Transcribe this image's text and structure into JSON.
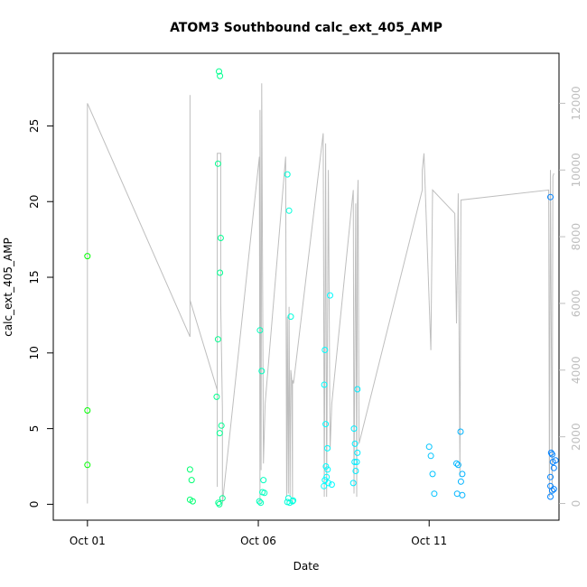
{
  "chart_data": {
    "type": "scatter",
    "title": "ATOM3 Southbound calc_ext_405_AMP",
    "xlabel": "Date",
    "ylabel": "calc_ext_405_AMP",
    "x_unit": "day of October",
    "xlim": [
      0.0,
      14.8
    ],
    "ylim": [
      -1.05,
      29.8
    ],
    "x_ticks": [
      {
        "value": 1,
        "label": "Oct 01"
      },
      {
        "value": 6,
        "label": "Oct 06"
      },
      {
        "value": 11,
        "label": "Oct 11"
      }
    ],
    "y_ticks": [
      0,
      5,
      10,
      15,
      20,
      25
    ],
    "y2_ticks": [
      0,
      2000,
      4000,
      6000,
      8000,
      10000,
      12000
    ],
    "y2lim": [
      -500,
      13500
    ],
    "color_ramp": [
      "#00ff00",
      "#00ffff",
      "#0080ff"
    ],
    "line_color": "#bebebe",
    "grid": false,
    "points": [
      [
        1.0,
        16.4
      ],
      [
        1.0,
        6.2
      ],
      [
        1.0,
        2.6
      ],
      [
        4.0,
        2.3
      ],
      [
        4.05,
        1.6
      ],
      [
        4.0,
        0.3
      ],
      [
        4.08,
        0.2
      ],
      [
        4.85,
        28.6
      ],
      [
        4.88,
        28.3
      ],
      [
        4.82,
        22.5
      ],
      [
        4.9,
        17.6
      ],
      [
        4.88,
        15.3
      ],
      [
        4.82,
        10.9
      ],
      [
        4.78,
        7.1
      ],
      [
        4.92,
        5.2
      ],
      [
        4.87,
        4.7
      ],
      [
        4.95,
        0.4
      ],
      [
        4.83,
        0.1
      ],
      [
        4.86,
        0.0
      ],
      [
        6.05,
        11.5
      ],
      [
        6.1,
        8.8
      ],
      [
        6.15,
        1.6
      ],
      [
        6.12,
        0.8
      ],
      [
        6.18,
        0.75
      ],
      [
        6.03,
        0.2
      ],
      [
        6.07,
        0.1
      ],
      [
        6.85,
        21.8
      ],
      [
        6.9,
        19.4
      ],
      [
        6.95,
        12.4
      ],
      [
        6.88,
        0.4
      ],
      [
        6.85,
        0.15
      ],
      [
        6.92,
        0.1
      ],
      [
        7.02,
        0.25
      ],
      [
        7.0,
        0.2
      ],
      [
        8.1,
        13.8
      ],
      [
        7.95,
        10.2
      ],
      [
        7.93,
        7.9
      ],
      [
        7.97,
        5.3
      ],
      [
        8.02,
        3.7
      ],
      [
        7.98,
        2.5
      ],
      [
        8.03,
        2.3
      ],
      [
        8.0,
        1.8
      ],
      [
        7.95,
        1.6
      ],
      [
        8.05,
        1.4
      ],
      [
        7.92,
        1.2
      ],
      [
        8.15,
        1.3
      ],
      [
        8.9,
        7.6
      ],
      [
        8.8,
        5.0
      ],
      [
        8.83,
        4.0
      ],
      [
        8.9,
        3.4
      ],
      [
        8.82,
        2.8
      ],
      [
        8.88,
        2.8
      ],
      [
        8.85,
        2.2
      ],
      [
        8.78,
        1.4
      ],
      [
        11.0,
        3.8
      ],
      [
        11.05,
        3.2
      ],
      [
        11.1,
        2.0
      ],
      [
        11.15,
        0.7
      ],
      [
        11.8,
        2.7
      ],
      [
        11.85,
        2.6
      ],
      [
        11.92,
        4.8
      ],
      [
        11.97,
        2.0
      ],
      [
        11.93,
        1.5
      ],
      [
        11.82,
        0.7
      ],
      [
        11.97,
        0.6
      ],
      [
        14.55,
        20.3
      ],
      [
        14.57,
        3.4
      ],
      [
        14.6,
        3.3
      ],
      [
        14.7,
        2.9
      ],
      [
        14.62,
        2.8
      ],
      [
        14.65,
        2.4
      ],
      [
        14.55,
        1.8
      ],
      [
        14.55,
        1.2
      ],
      [
        14.65,
        1.0
      ],
      [
        14.6,
        0.9
      ],
      [
        14.55,
        0.5
      ]
    ],
    "line_series": {
      "axis": "right",
      "points": [
        [
          1.0,
          0
        ],
        [
          1.0,
          12000
        ],
        [
          4.0,
          5000
        ],
        [
          4.0,
          12250
        ],
        [
          4.0,
          6500
        ],
        [
          4.0,
          6100
        ],
        [
          4.8,
          3400
        ],
        [
          4.8,
          500
        ],
        [
          4.8,
          10500
        ],
        [
          4.9,
          10500
        ],
        [
          4.9,
          6000
        ],
        [
          4.95,
          2800
        ],
        [
          4.95,
          0
        ],
        [
          6.03,
          10400
        ],
        [
          6.05,
          0
        ],
        [
          6.05,
          11800
        ],
        [
          6.08,
          1000
        ],
        [
          6.1,
          12600
        ],
        [
          6.15,
          1200
        ],
        [
          6.2,
          3000
        ],
        [
          6.8,
          10400
        ],
        [
          6.83,
          200
        ],
        [
          6.85,
          5600
        ],
        [
          6.88,
          300
        ],
        [
          6.9,
          5900
        ],
        [
          6.93,
          200
        ],
        [
          6.95,
          4000
        ],
        [
          6.98,
          3700
        ],
        [
          7.0,
          0
        ],
        [
          7.0,
          3700
        ],
        [
          7.03,
          3600
        ],
        [
          7.9,
          11100
        ],
        [
          7.93,
          200
        ],
        [
          7.97,
          10800
        ],
        [
          8.0,
          200
        ],
        [
          8.05,
          10000
        ],
        [
          8.1,
          1600
        ],
        [
          8.15,
          3000
        ],
        [
          8.78,
          9400
        ],
        [
          8.8,
          300
        ],
        [
          8.85,
          9000
        ],
        [
          8.88,
          200
        ],
        [
          8.9,
          9000
        ],
        [
          8.92,
          9700
        ],
        [
          8.95,
          1800
        ],
        [
          10.8,
          9400
        ],
        [
          10.8,
          10000
        ],
        [
          10.85,
          10500
        ],
        [
          11.05,
          4600
        ],
        [
          11.1,
          9400
        ],
        [
          11.75,
          8700
        ],
        [
          11.8,
          5400
        ],
        [
          11.85,
          9300
        ],
        [
          11.9,
          800
        ],
        [
          11.93,
          9100
        ],
        [
          14.5,
          9400
        ],
        [
          14.52,
          200
        ],
        [
          14.55,
          10000
        ],
        [
          14.6,
          300
        ],
        [
          14.62,
          9800
        ],
        [
          14.65,
          9900
        ]
      ]
    }
  }
}
